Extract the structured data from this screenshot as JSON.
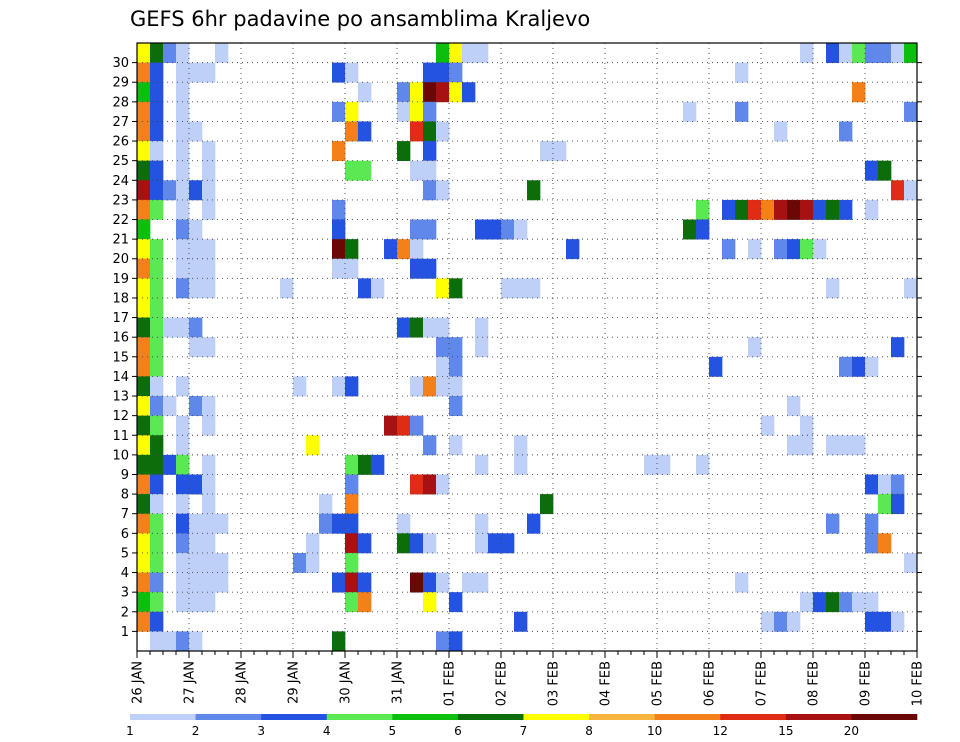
{
  "chart_data": {
    "type": "heatmap",
    "title": "GEFS 6hr padavine po ansamblima Kraljevo",
    "xlabel": "",
    "ylabel": "",
    "x_tick_labels": [
      "26 JAN",
      "27 JAN",
      "28 JAN",
      "29 JAN",
      "30 JAN",
      "31 JAN",
      "01 FEB",
      "02 FEB",
      "03 FEB",
      "04 FEB",
      "05 FEB",
      "06 FEB",
      "07 FEB",
      "08 FEB",
      "09 FEB",
      "10 FEB"
    ],
    "x_range_days": [
      0,
      15
    ],
    "steps_per_day": 4,
    "y_tick_labels": [
      "1",
      "2",
      "3",
      "4",
      "5",
      "6",
      "7",
      "8",
      "9",
      "10",
      "11",
      "12",
      "13",
      "14",
      "15",
      "16",
      "17",
      "18",
      "19",
      "20",
      "21",
      "22",
      "23",
      "24",
      "25",
      "26",
      "27",
      "28",
      "29",
      "30"
    ],
    "grid": "dotted",
    "legend": {
      "placement": "bottom",
      "labels": [
        "1",
        "2",
        "3",
        "4",
        "5",
        "6",
        "7",
        "8",
        "10",
        "12",
        "15",
        "20"
      ],
      "colors": [
        "#bfd0f8",
        "#5f88ea",
        "#2353e0",
        "#5ae853",
        "#0dbf0d",
        "#0b6e0b",
        "#ffff00",
        "#f8b53d",
        "#f48019",
        "#e02c14",
        "#a81111",
        "#6a0808"
      ]
    },
    "note": "cells: [member, time step (6h from 26 JAN 00z), color class index into legend.colors]",
    "cells": [
      [
        30,
        0,
        6
      ],
      [
        30,
        1,
        5
      ],
      [
        30,
        2,
        1
      ],
      [
        30,
        3,
        0
      ],
      [
        30,
        6,
        0
      ],
      [
        30,
        23,
        4
      ],
      [
        30,
        24,
        6
      ],
      [
        30,
        25,
        0
      ],
      [
        30,
        26,
        0
      ],
      [
        30,
        51,
        0
      ],
      [
        30,
        53,
        2
      ],
      [
        30,
        54,
        0
      ],
      [
        30,
        55,
        3
      ],
      [
        30,
        56,
        1
      ],
      [
        30,
        57,
        1
      ],
      [
        30,
        58,
        0
      ],
      [
        30,
        59,
        4
      ],
      [
        29,
        0,
        8
      ],
      [
        29,
        1,
        2
      ],
      [
        29,
        3,
        0
      ],
      [
        29,
        4,
        0
      ],
      [
        29,
        5,
        0
      ],
      [
        29,
        15,
        2
      ],
      [
        29,
        16,
        0
      ],
      [
        29,
        22,
        2
      ],
      [
        29,
        23,
        2
      ],
      [
        29,
        24,
        1
      ],
      [
        29,
        46,
        0
      ],
      [
        28,
        0,
        4
      ],
      [
        28,
        1,
        2
      ],
      [
        28,
        3,
        0
      ],
      [
        28,
        17,
        0
      ],
      [
        28,
        20,
        1
      ],
      [
        28,
        21,
        6
      ],
      [
        28,
        22,
        11
      ],
      [
        28,
        23,
        10
      ],
      [
        28,
        24,
        6
      ],
      [
        28,
        25,
        2
      ],
      [
        28,
        55,
        8
      ],
      [
        27,
        0,
        8
      ],
      [
        27,
        1,
        2
      ],
      [
        27,
        3,
        0
      ],
      [
        27,
        15,
        1
      ],
      [
        27,
        16,
        6
      ],
      [
        27,
        20,
        0
      ],
      [
        27,
        21,
        6
      ],
      [
        27,
        22,
        1
      ],
      [
        27,
        42,
        0
      ],
      [
        27,
        46,
        1
      ],
      [
        27,
        59,
        1
      ],
      [
        26,
        0,
        8
      ],
      [
        26,
        1,
        2
      ],
      [
        26,
        3,
        0
      ],
      [
        26,
        4,
        0
      ],
      [
        26,
        16,
        8
      ],
      [
        26,
        17,
        2
      ],
      [
        26,
        21,
        9
      ],
      [
        26,
        22,
        5
      ],
      [
        26,
        23,
        0
      ],
      [
        26,
        49,
        0
      ],
      [
        26,
        54,
        1
      ],
      [
        25,
        0,
        6
      ],
      [
        25,
        1,
        0
      ],
      [
        25,
        3,
        0
      ],
      [
        25,
        5,
        0
      ],
      [
        25,
        15,
        8
      ],
      [
        25,
        20,
        5
      ],
      [
        25,
        22,
        2
      ],
      [
        25,
        31,
        0
      ],
      [
        25,
        32,
        0
      ],
      [
        24,
        0,
        5
      ],
      [
        24,
        1,
        2
      ],
      [
        24,
        3,
        0
      ],
      [
        24,
        5,
        0
      ],
      [
        24,
        16,
        3
      ],
      [
        24,
        17,
        3
      ],
      [
        24,
        21,
        0
      ],
      [
        24,
        22,
        0
      ],
      [
        24,
        56,
        2
      ],
      [
        24,
        57,
        5
      ],
      [
        23,
        0,
        10
      ],
      [
        23,
        1,
        2
      ],
      [
        23,
        2,
        1
      ],
      [
        23,
        3,
        0
      ],
      [
        23,
        4,
        2
      ],
      [
        23,
        5,
        0
      ],
      [
        23,
        22,
        1
      ],
      [
        23,
        23,
        0
      ],
      [
        23,
        30,
        5
      ],
      [
        23,
        58,
        9
      ],
      [
        23,
        59,
        0
      ],
      [
        22,
        0,
        8
      ],
      [
        22,
        1,
        3
      ],
      [
        22,
        3,
        0
      ],
      [
        22,
        5,
        0
      ],
      [
        22,
        15,
        1
      ],
      [
        22,
        43,
        3
      ],
      [
        22,
        45,
        2
      ],
      [
        22,
        46,
        5
      ],
      [
        22,
        47,
        9
      ],
      [
        22,
        48,
        8
      ],
      [
        22,
        49,
        10
      ],
      [
        22,
        50,
        11
      ],
      [
        22,
        51,
        10
      ],
      [
        22,
        52,
        2
      ],
      [
        22,
        53,
        5
      ],
      [
        22,
        54,
        2
      ],
      [
        22,
        56,
        0
      ],
      [
        21,
        0,
        4
      ],
      [
        21,
        3,
        1
      ],
      [
        21,
        4,
        0
      ],
      [
        21,
        15,
        2
      ],
      [
        21,
        21,
        1
      ],
      [
        21,
        22,
        1
      ],
      [
        21,
        26,
        2
      ],
      [
        21,
        27,
        2
      ],
      [
        21,
        28,
        1
      ],
      [
        21,
        29,
        0
      ],
      [
        21,
        42,
        5
      ],
      [
        21,
        43,
        2
      ],
      [
        20,
        0,
        6
      ],
      [
        20,
        1,
        3
      ],
      [
        20,
        3,
        0
      ],
      [
        20,
        4,
        0
      ],
      [
        20,
        5,
        0
      ],
      [
        20,
        15,
        11
      ],
      [
        20,
        16,
        5
      ],
      [
        20,
        19,
        2
      ],
      [
        20,
        20,
        8
      ],
      [
        20,
        21,
        0
      ],
      [
        20,
        33,
        2
      ],
      [
        20,
        45,
        1
      ],
      [
        20,
        47,
        0
      ],
      [
        20,
        49,
        1
      ],
      [
        20,
        50,
        2
      ],
      [
        20,
        51,
        3
      ],
      [
        20,
        52,
        0
      ],
      [
        19,
        0,
        8
      ],
      [
        19,
        1,
        3
      ],
      [
        19,
        3,
        0
      ],
      [
        19,
        4,
        0
      ],
      [
        19,
        5,
        0
      ],
      [
        19,
        15,
        0
      ],
      [
        19,
        16,
        0
      ],
      [
        19,
        21,
        2
      ],
      [
        19,
        22,
        2
      ],
      [
        18,
        0,
        6
      ],
      [
        18,
        1,
        3
      ],
      [
        18,
        3,
        1
      ],
      [
        18,
        4,
        0
      ],
      [
        18,
        5,
        0
      ],
      [
        18,
        11,
        0
      ],
      [
        18,
        17,
        2
      ],
      [
        18,
        18,
        0
      ],
      [
        18,
        23,
        6
      ],
      [
        18,
        24,
        5
      ],
      [
        18,
        28,
        0
      ],
      [
        18,
        29,
        0
      ],
      [
        18,
        30,
        0
      ],
      [
        18,
        53,
        0
      ],
      [
        18,
        59,
        0
      ],
      [
        17,
        0,
        6
      ],
      [
        17,
        1,
        3
      ],
      [
        16,
        0,
        5
      ],
      [
        16,
        1,
        3
      ],
      [
        16,
        2,
        0
      ],
      [
        16,
        3,
        0
      ],
      [
        16,
        4,
        1
      ],
      [
        16,
        20,
        2
      ],
      [
        16,
        21,
        5
      ],
      [
        16,
        22,
        0
      ],
      [
        16,
        23,
        0
      ],
      [
        16,
        26,
        0
      ],
      [
        15,
        0,
        8
      ],
      [
        15,
        1,
        3
      ],
      [
        15,
        4,
        0
      ],
      [
        15,
        5,
        0
      ],
      [
        15,
        23,
        1
      ],
      [
        15,
        24,
        1
      ],
      [
        15,
        26,
        0
      ],
      [
        15,
        47,
        0
      ],
      [
        15,
        58,
        2
      ],
      [
        14,
        0,
        8
      ],
      [
        14,
        1,
        3
      ],
      [
        14,
        23,
        0
      ],
      [
        14,
        24,
        1
      ],
      [
        14,
        44,
        2
      ],
      [
        14,
        54,
        1
      ],
      [
        14,
        55,
        2
      ],
      [
        14,
        56,
        0
      ],
      [
        13,
        0,
        5
      ],
      [
        13,
        1,
        0
      ],
      [
        13,
        3,
        0
      ],
      [
        13,
        12,
        0
      ],
      [
        13,
        15,
        0
      ],
      [
        13,
        16,
        2
      ],
      [
        13,
        21,
        0
      ],
      [
        13,
        22,
        8
      ],
      [
        13,
        23,
        0
      ],
      [
        13,
        24,
        0
      ],
      [
        12,
        0,
        6
      ],
      [
        12,
        1,
        1
      ],
      [
        12,
        2,
        0
      ],
      [
        12,
        4,
        1
      ],
      [
        12,
        5,
        0
      ],
      [
        12,
        24,
        1
      ],
      [
        12,
        50,
        0
      ],
      [
        11,
        0,
        5
      ],
      [
        11,
        1,
        3
      ],
      [
        11,
        3,
        0
      ],
      [
        11,
        5,
        0
      ],
      [
        11,
        19,
        10
      ],
      [
        11,
        20,
        9
      ],
      [
        11,
        21,
        1
      ],
      [
        11,
        48,
        0
      ],
      [
        11,
        51,
        0
      ],
      [
        10,
        0,
        6
      ],
      [
        10,
        1,
        5
      ],
      [
        10,
        3,
        0
      ],
      [
        10,
        13,
        6
      ],
      [
        10,
        22,
        1
      ],
      [
        10,
        24,
        0
      ],
      [
        10,
        29,
        0
      ],
      [
        10,
        50,
        0
      ],
      [
        10,
        51,
        0
      ],
      [
        10,
        53,
        0
      ],
      [
        10,
        54,
        0
      ],
      [
        10,
        55,
        0
      ],
      [
        9,
        0,
        5
      ],
      [
        9,
        1,
        5
      ],
      [
        9,
        2,
        2
      ],
      [
        9,
        3,
        3
      ],
      [
        9,
        5,
        0
      ],
      [
        9,
        16,
        3
      ],
      [
        9,
        17,
        5
      ],
      [
        9,
        18,
        2
      ],
      [
        9,
        26,
        0
      ],
      [
        9,
        29,
        0
      ],
      [
        9,
        39,
        0
      ],
      [
        9,
        40,
        0
      ],
      [
        9,
        43,
        0
      ],
      [
        8,
        0,
        8
      ],
      [
        8,
        1,
        2
      ],
      [
        8,
        3,
        2
      ],
      [
        8,
        4,
        2
      ],
      [
        8,
        5,
        0
      ],
      [
        8,
        16,
        1
      ],
      [
        8,
        21,
        9
      ],
      [
        8,
        22,
        10
      ],
      [
        8,
        23,
        0
      ],
      [
        8,
        56,
        2
      ],
      [
        8,
        57,
        0
      ],
      [
        8,
        58,
        1
      ],
      [
        7,
        0,
        5
      ],
      [
        7,
        1,
        0
      ],
      [
        7,
        3,
        0
      ],
      [
        7,
        5,
        0
      ],
      [
        7,
        14,
        0
      ],
      [
        7,
        16,
        8
      ],
      [
        7,
        31,
        5
      ],
      [
        7,
        57,
        3
      ],
      [
        7,
        58,
        2
      ],
      [
        6,
        0,
        8
      ],
      [
        6,
        1,
        3
      ],
      [
        6,
        3,
        2
      ],
      [
        6,
        4,
        0
      ],
      [
        6,
        5,
        0
      ],
      [
        6,
        6,
        0
      ],
      [
        6,
        14,
        1
      ],
      [
        6,
        15,
        2
      ],
      [
        6,
        16,
        2
      ],
      [
        6,
        20,
        0
      ],
      [
        6,
        26,
        0
      ],
      [
        6,
        30,
        2
      ],
      [
        6,
        53,
        1
      ],
      [
        6,
        56,
        1
      ],
      [
        5,
        0,
        6
      ],
      [
        5,
        1,
        3
      ],
      [
        5,
        3,
        1
      ],
      [
        5,
        4,
        0
      ],
      [
        5,
        5,
        0
      ],
      [
        5,
        13,
        0
      ],
      [
        5,
        16,
        10
      ],
      [
        5,
        17,
        2
      ],
      [
        5,
        20,
        5
      ],
      [
        5,
        21,
        2
      ],
      [
        5,
        22,
        0
      ],
      [
        5,
        26,
        0
      ],
      [
        5,
        27,
        2
      ],
      [
        5,
        28,
        2
      ],
      [
        5,
        56,
        1
      ],
      [
        5,
        57,
        8
      ],
      [
        4,
        0,
        6
      ],
      [
        4,
        1,
        3
      ],
      [
        4,
        3,
        0
      ],
      [
        4,
        4,
        0
      ],
      [
        4,
        5,
        0
      ],
      [
        4,
        6,
        0
      ],
      [
        4,
        12,
        1
      ],
      [
        4,
        13,
        0
      ],
      [
        4,
        16,
        3
      ],
      [
        4,
        59,
        0
      ],
      [
        3,
        0,
        8
      ],
      [
        3,
        1,
        1
      ],
      [
        3,
        3,
        0
      ],
      [
        3,
        4,
        0
      ],
      [
        3,
        5,
        0
      ],
      [
        3,
        6,
        0
      ],
      [
        3,
        15,
        2
      ],
      [
        3,
        16,
        10
      ],
      [
        3,
        17,
        2
      ],
      [
        3,
        21,
        11
      ],
      [
        3,
        22,
        2
      ],
      [
        3,
        23,
        0
      ],
      [
        3,
        25,
        0
      ],
      [
        3,
        26,
        0
      ],
      [
        3,
        46,
        0
      ],
      [
        2,
        0,
        4
      ],
      [
        2,
        1,
        3
      ],
      [
        2,
        3,
        0
      ],
      [
        2,
        4,
        0
      ],
      [
        2,
        5,
        0
      ],
      [
        2,
        16,
        3
      ],
      [
        2,
        17,
        8
      ],
      [
        2,
        22,
        6
      ],
      [
        2,
        24,
        2
      ],
      [
        2,
        51,
        0
      ],
      [
        2,
        52,
        2
      ],
      [
        2,
        53,
        5
      ],
      [
        2,
        54,
        1
      ],
      [
        2,
        55,
        0
      ],
      [
        2,
        56,
        0
      ],
      [
        1,
        0,
        8
      ],
      [
        1,
        1,
        2
      ],
      [
        1,
        29,
        2
      ],
      [
        1,
        48,
        0
      ],
      [
        1,
        49,
        1
      ],
      [
        1,
        50,
        0
      ],
      [
        1,
        56,
        2
      ],
      [
        1,
        57,
        2
      ],
      [
        1,
        58,
        0
      ],
      [
        0,
        1,
        0
      ],
      [
        0,
        2,
        0
      ],
      [
        0,
        3,
        1
      ],
      [
        0,
        4,
        0
      ],
      [
        0,
        15,
        5
      ],
      [
        0,
        23,
        1
      ],
      [
        0,
        24,
        2
      ]
    ]
  }
}
